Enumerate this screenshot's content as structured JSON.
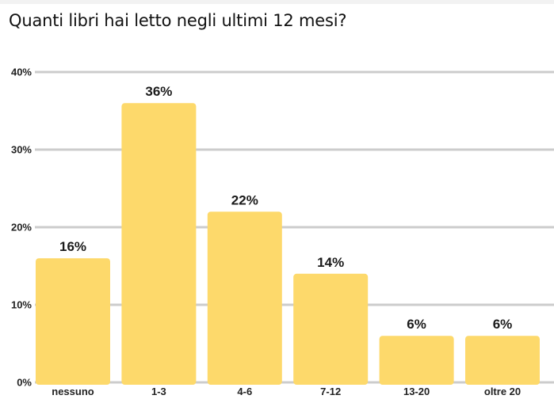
{
  "chart_data": {
    "type": "bar",
    "title": "Quanti libri hai letto negli ultimi 12 mesi?",
    "categories": [
      "nessuno",
      "1-3",
      "4-6",
      "7-12",
      "13-20",
      "oltre 20"
    ],
    "values": [
      16,
      36,
      22,
      14,
      6,
      6
    ],
    "data_labels": [
      "16%",
      "36%",
      "22%",
      "14%",
      "6%",
      "6%"
    ],
    "y_ticks": [
      0,
      10,
      20,
      30,
      40
    ],
    "y_tick_labels": [
      "0%",
      "10%",
      "20%",
      "30%",
      "40%"
    ],
    "ylim": [
      0,
      40
    ],
    "grid": true,
    "legend": "none",
    "xlabel": "",
    "ylabel": "",
    "colors": {
      "bar": "#fdd96b",
      "grid": "#cccccc",
      "text": "#222222"
    }
  }
}
